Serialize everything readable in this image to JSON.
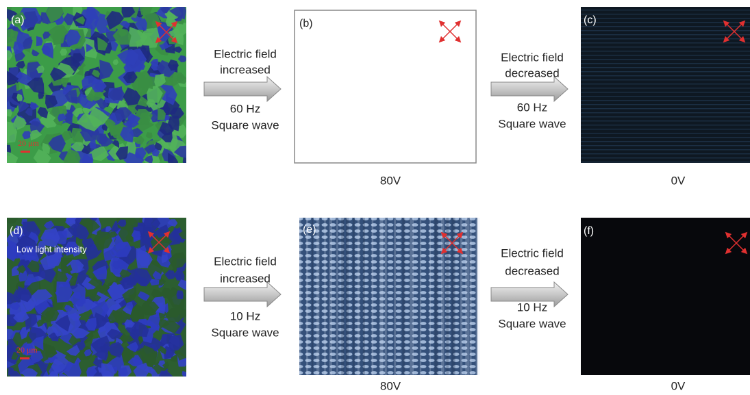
{
  "panels": [
    {
      "label": "(a)",
      "scale_bar": "20 μm"
    },
    {
      "label": "(b)",
      "caption": "80V"
    },
    {
      "label": "(c)",
      "caption": "0V"
    },
    {
      "label": "(d)",
      "note": "Low light intensity",
      "scale_bar": "20 μm"
    },
    {
      "label": "(e)",
      "caption": "80V"
    },
    {
      "label": "(f)",
      "caption": "0V"
    }
  ],
  "arrows": [
    {
      "lines": [
        "Electric field",
        "increased",
        "60 Hz",
        "Square wave"
      ]
    },
    {
      "lines": [
        "Electric field",
        "decreased",
        "60 Hz",
        "Square wave"
      ]
    },
    {
      "lines": [
        "Electric field",
        "increased",
        "10 Hz",
        "Square wave"
      ]
    },
    {
      "lines": [
        "Electric field",
        "decreased",
        "10 Hz",
        "Square wave"
      ]
    }
  ]
}
